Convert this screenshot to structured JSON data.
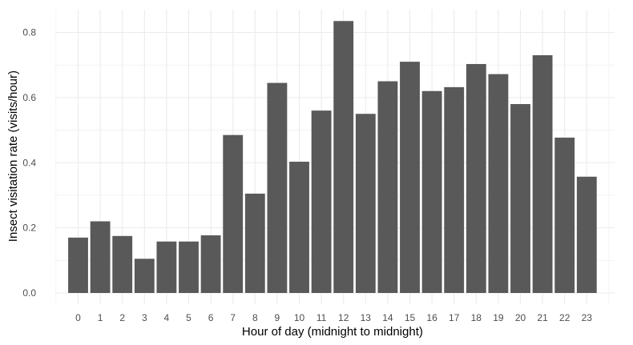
{
  "chart_data": {
    "type": "bar",
    "title": "",
    "xlabel": "Hour of day (midnight to midnight)",
    "ylabel": "Insect visitation rate (visits/hour)",
    "categories": [
      "0",
      "1",
      "2",
      "3",
      "4",
      "5",
      "6",
      "7",
      "8",
      "9",
      "10",
      "11",
      "12",
      "13",
      "14",
      "15",
      "16",
      "17",
      "18",
      "19",
      "20",
      "21",
      "22",
      "23"
    ],
    "values": [
      0.17,
      0.22,
      0.175,
      0.105,
      0.158,
      0.158,
      0.177,
      0.485,
      0.305,
      0.645,
      0.403,
      0.56,
      0.835,
      0.55,
      0.65,
      0.71,
      0.62,
      0.632,
      0.703,
      0.672,
      0.58,
      0.73,
      0.477,
      0.357
    ],
    "y_ticks": [
      "0.0",
      "0.2",
      "0.4",
      "0.6",
      "0.8"
    ],
    "ylim": [
      -0.03,
      0.87
    ],
    "grid": true,
    "legend": "none",
    "colors": {
      "bar": "#595959",
      "grid": "#ebebeb",
      "background": "#ffffff"
    }
  }
}
